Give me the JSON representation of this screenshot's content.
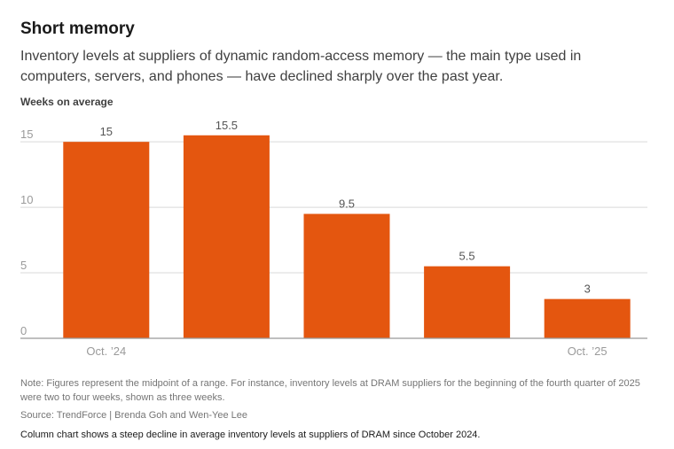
{
  "header": {
    "title": "Short memory",
    "subtitle": "Inventory levels at suppliers of dynamic random-access memory — the main type used in computers, servers, and phones — have declined sharply over the past year."
  },
  "footer": {
    "note": "Note: Figures represent the midpoint of a range. For instance, inventory levels at DRAM suppliers for the beginning of the fourth quarter of 2025 were two to four weeks, shown as three weeks.",
    "source": "Source: TrendForce | Brenda Goh and Wen-Yee Lee",
    "description": "Column chart shows a steep decline in average inventory levels at suppliers of DRAM since October 2024."
  },
  "colors": {
    "bar": "#e4560f",
    "grid": "#d9d9d9",
    "axis": "#999999",
    "tick_text": "#9a9a9a",
    "label_text": "#555555"
  },
  "chart_data": {
    "type": "bar",
    "ylabel": "Weeks on average",
    "categories": [
      "Oct. ’24",
      "",
      "",
      "",
      "Oct. ’25"
    ],
    "values": [
      15,
      15.5,
      9.5,
      5.5,
      3
    ],
    "data_labels": [
      "15",
      "15.5",
      "9.5",
      "5.5",
      "3"
    ],
    "yticks": [
      0,
      5,
      10,
      15
    ],
    "ylim": [
      0,
      16.5
    ],
    "grid": true,
    "legend": "none"
  }
}
